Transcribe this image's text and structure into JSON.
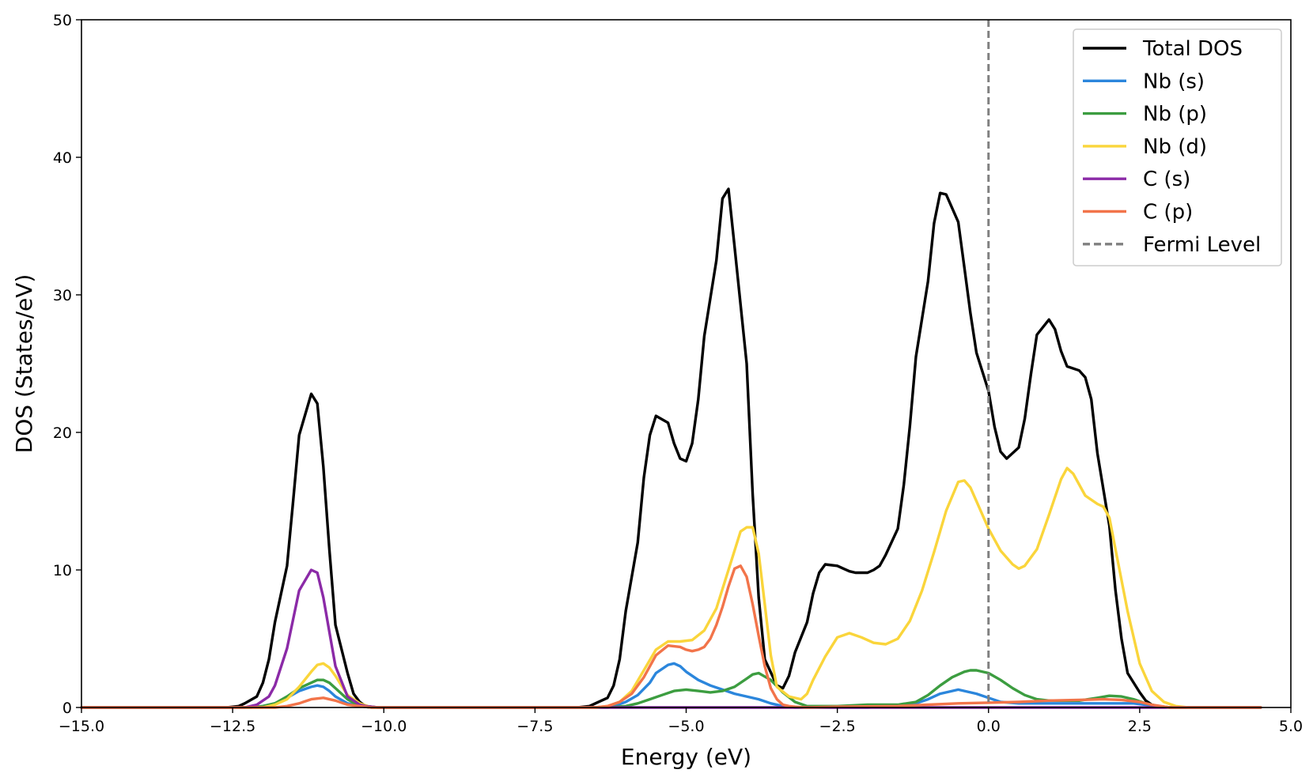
{
  "chart_data": {
    "type": "line",
    "title": "",
    "xlabel": "Energy (eV)",
    "ylabel": "DOS (States/eV)",
    "xlim": [
      -15.0,
      5.0
    ],
    "ylim": [
      0,
      50
    ],
    "xticks": [
      -15.0,
      -12.5,
      -10.0,
      -7.5,
      -5.0,
      -2.5,
      0.0,
      2.5,
      5.0
    ],
    "xtick_labels": [
      "−15.0",
      "−12.5",
      "−10.0",
      "−7.5",
      "−5.0",
      "−2.5",
      "0.0",
      "2.5",
      "5.0"
    ],
    "yticks": [
      0,
      10,
      20,
      30,
      40,
      50
    ],
    "ytick_labels": [
      "0",
      "10",
      "20",
      "30",
      "40",
      "50"
    ],
    "grid": false,
    "legend_position": "top-right",
    "series": [
      {
        "name": "Total DOS",
        "color": "#000000",
        "style": "solid",
        "x": [
          -15.0,
          -12.6,
          -12.4,
          -12.3,
          -12.1,
          -12.0,
          -11.9,
          -11.8,
          -11.6,
          -11.5,
          -11.4,
          -11.2,
          -11.1,
          -11.0,
          -10.9,
          -10.8,
          -10.6,
          -10.5,
          -10.4,
          -10.3,
          -10.1,
          -10.0,
          -9.8,
          -6.8,
          -6.6,
          -6.5,
          -6.3,
          -6.2,
          -6.1,
          -6.0,
          -5.8,
          -5.7,
          -5.6,
          -5.5,
          -5.3,
          -5.2,
          -5.1,
          -5.0,
          -4.9,
          -4.8,
          -4.7,
          -4.5,
          -4.4,
          -4.3,
          -4.2,
          -4.0,
          -3.9,
          -3.8,
          -3.7,
          -3.5,
          -3.4,
          -3.3,
          -3.2,
          -3.0,
          -2.9,
          -2.8,
          -2.7,
          -2.5,
          -2.4,
          -2.3,
          -2.2,
          -2.0,
          -1.9,
          -1.8,
          -1.7,
          -1.5,
          -1.4,
          -1.3,
          -1.2,
          -1.0,
          -0.9,
          -0.8,
          -0.7,
          -0.5,
          -0.4,
          -0.3,
          -0.2,
          0.0,
          0.1,
          0.2,
          0.3,
          0.5,
          0.6,
          0.7,
          0.8,
          1.0,
          1.1,
          1.2,
          1.3,
          1.5,
          1.6,
          1.7,
          1.8,
          2.0,
          2.1,
          2.2,
          2.3,
          2.5,
          2.6,
          2.7,
          2.8,
          3.0,
          3.1,
          3.3,
          4.5
        ],
        "y": [
          0,
          0,
          0.1,
          0.3,
          0.8,
          1.8,
          3.5,
          6.2,
          10.3,
          15.0,
          19.8,
          22.8,
          22.1,
          17.5,
          11.5,
          6.0,
          2.5,
          1.0,
          0.4,
          0.1,
          0,
          0,
          0,
          0,
          0.1,
          0.3,
          0.7,
          1.6,
          3.5,
          7.0,
          12.0,
          16.7,
          19.8,
          21.2,
          20.7,
          19.2,
          18.1,
          17.9,
          19.2,
          22.4,
          27.0,
          32.5,
          37.0,
          37.7,
          33.5,
          25.0,
          15.5,
          8.0,
          3.5,
          1.6,
          1.4,
          2.3,
          4.0,
          6.2,
          8.3,
          9.8,
          10.4,
          10.3,
          10.1,
          9.9,
          9.8,
          9.8,
          10.0,
          10.3,
          11.1,
          13.0,
          16.2,
          20.5,
          25.5,
          31.0,
          35.2,
          37.4,
          37.3,
          35.3,
          32.0,
          28.7,
          25.8,
          23.0,
          20.4,
          18.6,
          18.1,
          18.9,
          21.0,
          24.2,
          27.1,
          28.2,
          27.5,
          25.9,
          24.8,
          24.5,
          24.0,
          22.4,
          18.5,
          13.2,
          8.5,
          5.0,
          2.5,
          1.1,
          0.5,
          0.2,
          0.1,
          0,
          0,
          0,
          0
        ]
      },
      {
        "name": "Nb (s)",
        "color": "#2b86dc",
        "style": "solid",
        "x": [
          -15.0,
          -12.2,
          -12.0,
          -11.8,
          -11.6,
          -11.4,
          -11.2,
          -11.1,
          -11.0,
          -10.9,
          -10.8,
          -10.6,
          -10.4,
          -10.2,
          -6.5,
          -6.2,
          -6.0,
          -5.8,
          -5.6,
          -5.5,
          -5.3,
          -5.2,
          -5.1,
          -5.0,
          -4.8,
          -4.6,
          -4.4,
          -4.2,
          -4.0,
          -3.8,
          -3.6,
          -3.4,
          -3.2,
          -3.0,
          -2.0,
          -1.5,
          -1.2,
          -1.0,
          -0.8,
          -0.6,
          -0.5,
          -0.4,
          -0.2,
          0.0,
          0.2,
          0.5,
          1.0,
          1.5,
          2.0,
          2.4,
          2.6,
          2.8,
          3.0,
          4.5
        ],
        "y": [
          0,
          0,
          0.1,
          0.3,
          0.7,
          1.2,
          1.5,
          1.6,
          1.5,
          1.2,
          0.8,
          0.3,
          0.1,
          0,
          0,
          0.1,
          0.4,
          0.9,
          1.8,
          2.5,
          3.1,
          3.2,
          3.0,
          2.6,
          2.0,
          1.6,
          1.3,
          1.0,
          0.8,
          0.6,
          0.3,
          0.1,
          0,
          0,
          0,
          0.1,
          0.3,
          0.6,
          1.0,
          1.2,
          1.3,
          1.2,
          1.0,
          0.7,
          0.4,
          0.3,
          0.3,
          0.3,
          0.3,
          0.3,
          0.2,
          0.1,
          0,
          0
        ]
      },
      {
        "name": "Nb (p)",
        "color": "#3c9d40",
        "style": "solid",
        "x": [
          -15.0,
          -12.2,
          -12.0,
          -11.8,
          -11.6,
          -11.4,
          -11.2,
          -11.1,
          -11.0,
          -10.9,
          -10.8,
          -10.6,
          -10.4,
          -10.2,
          -6.3,
          -6.0,
          -5.8,
          -5.6,
          -5.4,
          -5.2,
          -5.0,
          -4.8,
          -4.6,
          -4.4,
          -4.2,
          -4.0,
          -3.9,
          -3.8,
          -3.6,
          -3.4,
          -3.2,
          -3.0,
          -2.8,
          -2.5,
          -2.0,
          -1.5,
          -1.2,
          -1.0,
          -0.8,
          -0.6,
          -0.4,
          -0.3,
          -0.2,
          0.0,
          0.2,
          0.4,
          0.6,
          0.8,
          1.0,
          1.2,
          1.5,
          1.8,
          2.0,
          2.2,
          2.4,
          2.6,
          2.8,
          3.0,
          4.5
        ],
        "y": [
          0,
          0,
          0.1,
          0.3,
          0.8,
          1.4,
          1.8,
          2.0,
          2.0,
          1.8,
          1.4,
          0.6,
          0.1,
          0,
          0,
          0.1,
          0.3,
          0.6,
          0.9,
          1.2,
          1.3,
          1.2,
          1.1,
          1.2,
          1.5,
          2.1,
          2.4,
          2.5,
          2.0,
          1.1,
          0.4,
          0.1,
          0.1,
          0.1,
          0.2,
          0.2,
          0.4,
          0.9,
          1.6,
          2.2,
          2.6,
          2.7,
          2.7,
          2.5,
          2.0,
          1.4,
          0.9,
          0.6,
          0.5,
          0.5,
          0.5,
          0.7,
          0.85,
          0.8,
          0.6,
          0.3,
          0.1,
          0,
          0
        ]
      },
      {
        "name": "Nb (d)",
        "color": "#fad53b",
        "style": "solid",
        "x": [
          -15.0,
          -12.0,
          -11.8,
          -11.6,
          -11.4,
          -11.2,
          -11.1,
          -11.0,
          -10.9,
          -10.8,
          -10.7,
          -10.6,
          -10.4,
          -10.2,
          -6.5,
          -6.3,
          -6.1,
          -5.9,
          -5.7,
          -5.5,
          -5.3,
          -5.1,
          -4.9,
          -4.7,
          -4.5,
          -4.3,
          -4.1,
          -4.0,
          -3.9,
          -3.8,
          -3.7,
          -3.6,
          -3.5,
          -3.3,
          -3.1,
          -3.0,
          -2.9,
          -2.7,
          -2.5,
          -2.3,
          -2.1,
          -1.9,
          -1.7,
          -1.5,
          -1.3,
          -1.1,
          -0.9,
          -0.7,
          -0.5,
          -0.4,
          -0.3,
          -0.2,
          0.0,
          0.2,
          0.4,
          0.5,
          0.6,
          0.8,
          1.0,
          1.2,
          1.3,
          1.4,
          1.6,
          1.8,
          1.9,
          2.0,
          2.1,
          2.3,
          2.5,
          2.7,
          2.9,
          3.1,
          3.3,
          4.5
        ],
        "y": [
          0,
          0,
          0.2,
          0.6,
          1.5,
          2.6,
          3.1,
          3.2,
          2.9,
          2.3,
          1.6,
          0.9,
          0.3,
          0,
          0,
          0.1,
          0.4,
          1.2,
          2.7,
          4.2,
          4.8,
          4.8,
          4.9,
          5.6,
          7.2,
          10.0,
          12.8,
          13.1,
          13.1,
          11.2,
          7.5,
          3.8,
          1.5,
          0.8,
          0.6,
          1.0,
          2.0,
          3.7,
          5.1,
          5.4,
          5.1,
          4.7,
          4.6,
          5.0,
          6.3,
          8.5,
          11.3,
          14.3,
          16.4,
          16.5,
          16.0,
          15.0,
          13.0,
          11.4,
          10.4,
          10.1,
          10.3,
          11.5,
          14.0,
          16.6,
          17.4,
          17.0,
          15.4,
          14.8,
          14.6,
          13.8,
          11.5,
          7.0,
          3.2,
          1.2,
          0.4,
          0.1,
          0,
          0
        ]
      },
      {
        "name": "C (s)",
        "color": "#8b2aa7",
        "style": "solid",
        "x": [
          -15.0,
          -12.3,
          -12.1,
          -11.9,
          -11.8,
          -11.6,
          -11.4,
          -11.2,
          -11.1,
          -11.0,
          -10.9,
          -10.8,
          -10.6,
          -10.4,
          -10.3,
          -10.1,
          4.5
        ],
        "y": [
          0,
          0,
          0.2,
          0.8,
          1.6,
          4.3,
          8.5,
          10.0,
          9.8,
          8.0,
          5.5,
          3.0,
          0.8,
          0.2,
          0.1,
          0,
          0
        ]
      },
      {
        "name": "C (p)",
        "color": "#f2744a",
        "style": "solid",
        "x": [
          -15.0,
          -11.8,
          -11.6,
          -11.4,
          -11.2,
          -11.0,
          -10.8,
          -10.6,
          -10.4,
          -10.2,
          -6.5,
          -6.3,
          -6.1,
          -5.9,
          -5.7,
          -5.5,
          -5.3,
          -5.1,
          -5.0,
          -4.9,
          -4.8,
          -4.7,
          -4.6,
          -4.5,
          -4.4,
          -4.3,
          -4.2,
          -4.1,
          -4.0,
          -3.9,
          -3.8,
          -3.7,
          -3.6,
          -3.5,
          -3.4,
          -3.3,
          -3.2,
          -3.0,
          -2.5,
          -1.5,
          -1.0,
          -0.5,
          0.0,
          0.5,
          1.0,
          1.5,
          1.9,
          2.2,
          2.5,
          2.7,
          3.0,
          4.5
        ],
        "y": [
          0,
          0,
          0.1,
          0.3,
          0.6,
          0.7,
          0.5,
          0.2,
          0.1,
          0,
          0,
          0.1,
          0.4,
          1.0,
          2.2,
          3.8,
          4.5,
          4.4,
          4.2,
          4.1,
          4.2,
          4.4,
          5.0,
          6.0,
          7.3,
          8.8,
          10.1,
          10.3,
          9.5,
          7.5,
          5.2,
          3.0,
          1.4,
          0.6,
          0.2,
          0.1,
          0.05,
          0,
          0.05,
          0.1,
          0.2,
          0.3,
          0.35,
          0.4,
          0.5,
          0.55,
          0.6,
          0.55,
          0.4,
          0.2,
          0,
          0
        ]
      },
      {
        "name": "Fermi Level",
        "color": "#808080",
        "style": "dashed",
        "type": "vline",
        "x": 0.0
      }
    ]
  }
}
